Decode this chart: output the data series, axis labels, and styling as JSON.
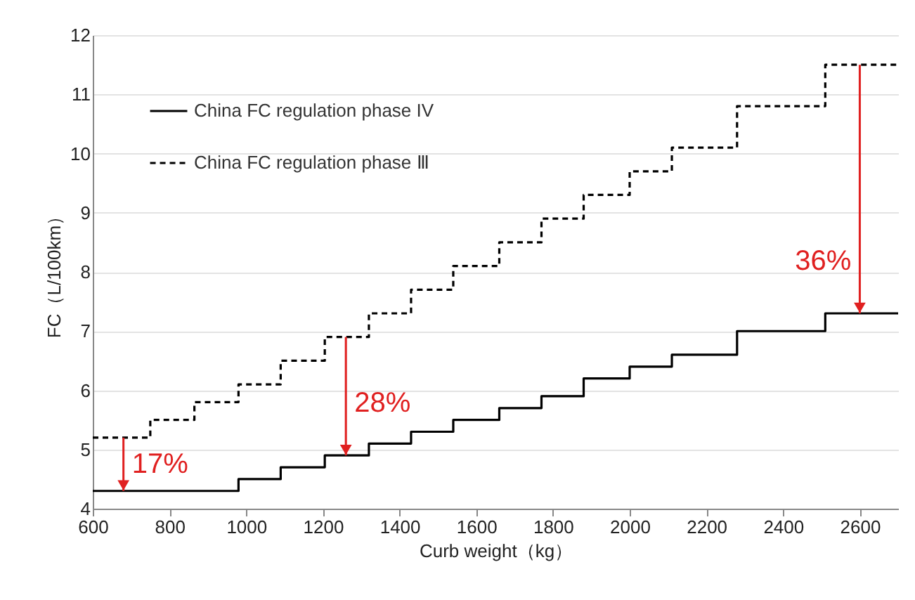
{
  "chart_data": {
    "type": "step",
    "xlabel": "Curb weight（kg）",
    "ylabel": "FC（L/100km）",
    "x": [
      600,
      750,
      865,
      980,
      1090,
      1205,
      1320,
      1430,
      1540,
      1660,
      1770,
      1880,
      2000,
      2110,
      2280,
      2510,
      2700
    ],
    "series": [
      {
        "name": "China FC regulation phase IV",
        "color": "#000000",
        "line_style": "solid",
        "values": [
          4.3,
          4.3,
          4.3,
          4.5,
          4.7,
          4.9,
          5.1,
          5.3,
          5.5,
          5.7,
          5.9,
          6.2,
          6.4,
          6.6,
          7.0,
          7.3,
          7.3
        ]
      },
      {
        "name": "China FC regulation phase Ⅲ",
        "color": "#000000",
        "line_style": "dashed",
        "values": [
          5.2,
          5.5,
          5.8,
          6.1,
          6.5,
          6.9,
          7.3,
          7.7,
          8.1,
          8.5,
          8.9,
          9.3,
          9.7,
          10.1,
          10.8,
          11.5,
          11.5
        ]
      }
    ],
    "xlim": [
      600,
      2700
    ],
    "xticks": [
      600,
      800,
      1000,
      1200,
      1400,
      1600,
      1800,
      2000,
      2200,
      2400,
      2600
    ],
    "ylim": [
      4,
      12
    ],
    "yticks": [
      4,
      5,
      6,
      7,
      8,
      9,
      10,
      11,
      12
    ],
    "grid": "y",
    "legend": "top left",
    "annotations": [
      {
        "text": "17%",
        "x": 680,
        "y": 4.3
      },
      {
        "text": "28%",
        "x": 1260,
        "y": 4.9
      },
      {
        "text": "36%",
        "x": 2600,
        "y": 7.3
      }
    ]
  }
}
